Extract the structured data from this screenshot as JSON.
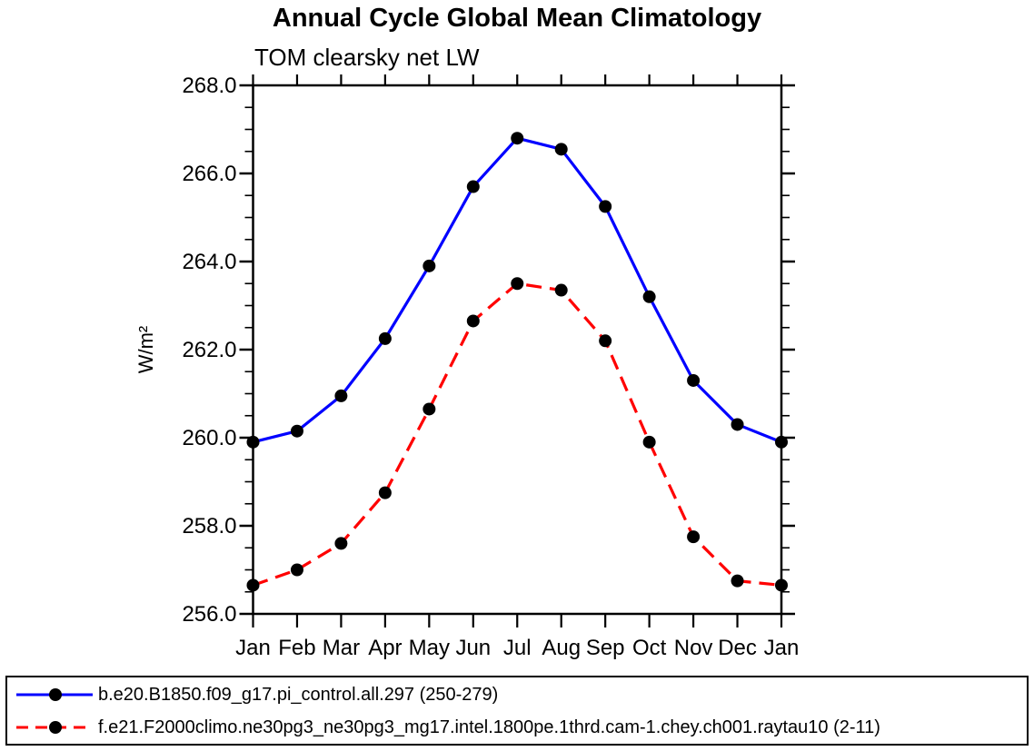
{
  "page": {
    "title": "Annual Cycle Global Mean Climatology",
    "subtitle": "TOM clearsky net LW"
  },
  "chart_data": {
    "type": "line",
    "title": "Annual Cycle Global Mean Climatology",
    "subtitle": "TOM clearsky net LW",
    "xlabel": "",
    "ylabel": "W/m²",
    "x_categories": [
      "Jan",
      "Feb",
      "Mar",
      "Apr",
      "May",
      "Jun",
      "Jul",
      "Aug",
      "Sep",
      "Oct",
      "Nov",
      "Dec",
      "Jan"
    ],
    "ylim": [
      256.0,
      268.0
    ],
    "y_major_ticks": [
      256.0,
      258.0,
      260.0,
      262.0,
      264.0,
      266.0,
      268.0
    ],
    "y_tick_labels": [
      "256.0",
      "258.0",
      "260.0",
      "262.0",
      "264.0",
      "266.0",
      "268.0"
    ],
    "y_minor_step": 0.5,
    "grid": false,
    "legend_position": "bottom-box",
    "marker": {
      "shape": "circle",
      "color": "#000000",
      "radius": 7
    },
    "series": [
      {
        "name": "b.e20.B1850.f09_g17.pi_control.all.297 (250-279)",
        "color": "#0000ff",
        "style": "solid",
        "values": [
          259.9,
          260.15,
          260.95,
          262.25,
          263.9,
          265.7,
          266.8,
          266.55,
          265.25,
          263.2,
          261.3,
          260.3,
          259.9
        ]
      },
      {
        "name": "f.e21.F2000climo.ne30pg3_ne30pg3_mg17.intel.1800pe.1thrd.cam-1.chey.ch001.raytau10 (2-11)",
        "color": "#ff0000",
        "style": "dashed",
        "values": [
          256.65,
          257.0,
          257.6,
          258.75,
          260.65,
          262.65,
          263.5,
          263.35,
          262.2,
          259.9,
          257.75,
          256.75,
          256.65
        ]
      }
    ]
  }
}
